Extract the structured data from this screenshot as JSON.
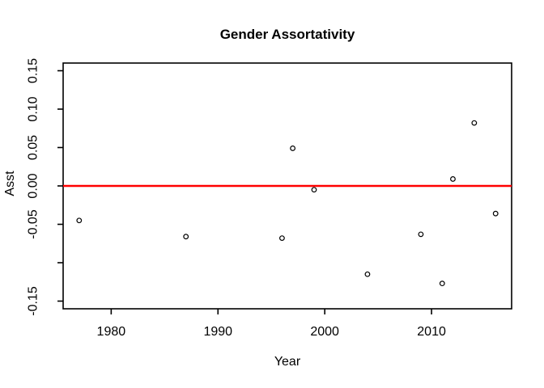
{
  "figure": {
    "background": "#ffffff",
    "foreground": "#000000"
  },
  "chart_data": {
    "type": "scatter",
    "title": "Gender Assortativity",
    "xlabel": "Year",
    "ylabel": "Asst",
    "x": [
      1977,
      1987,
      1996,
      1997,
      1999,
      2004,
      2009,
      2011,
      2012,
      2014,
      2016
    ],
    "y": [
      -0.045,
      -0.066,
      -0.068,
      0.049,
      -0.005,
      -0.115,
      -0.063,
      -0.127,
      0.009,
      0.082,
      -0.036
    ],
    "marker": "open-circle",
    "marker_color": "#000000",
    "xlim": [
      1975.5,
      2017.5
    ],
    "ylim": [
      -0.16,
      0.16
    ],
    "x_ticks": [
      {
        "value": 1980,
        "label": "1980"
      },
      {
        "value": 1990,
        "label": "1990"
      },
      {
        "value": 2000,
        "label": "2000"
      },
      {
        "value": 2010,
        "label": "2010"
      }
    ],
    "y_ticks": [
      {
        "value": 0.15,
        "label": "0.15"
      },
      {
        "value": 0.1,
        "label": "0.10"
      },
      {
        "value": 0.05,
        "label": "0.05"
      },
      {
        "value": 0.0,
        "label": "0.00"
      },
      {
        "value": -0.05,
        "label": "-0.05"
      },
      {
        "value": -0.1,
        "label": ""
      },
      {
        "value": -0.15,
        "label": "-0.15"
      }
    ],
    "reference_line": {
      "y": 0.0,
      "color": "#ff0000",
      "width": 2.4
    },
    "grid": false,
    "legend": "none"
  }
}
